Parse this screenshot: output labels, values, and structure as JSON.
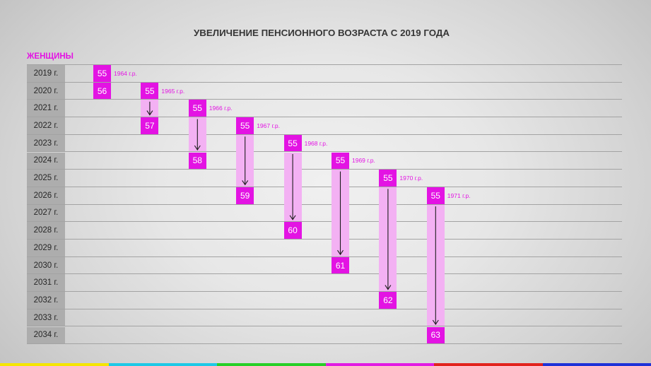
{
  "colors": {
    "accent": "#e313e3",
    "range_fill": "#f3b1f3",
    "row_label_fill": "#adadad",
    "row_line": "#a3a3a3",
    "title_text": "#363636",
    "row_label_text": "#262626",
    "arrow": "#1c1c1c",
    "box_text": "#ffffff",
    "brand_stripe": [
      "#f5e500",
      "#1ec8e6",
      "#27cf27",
      "#e21be2",
      "#e2231d",
      "#1d32d8"
    ]
  },
  "chart_data": {
    "type": "bar",
    "title": "УВЕЛИЧЕНИЕ ПЕНСИОННОГО ВОЗРАСТА С 2019 ГОДА",
    "subtitle": "ЖЕНЩИНЫ",
    "categories": [
      "2019 г.",
      "2020 г.",
      "2021 г.",
      "2022 г.",
      "2023 г.",
      "2024 г.",
      "2025 г.",
      "2026 г.",
      "2027 г.",
      "2028 г.",
      "2029 г.",
      "2030 г.",
      "2031 г.",
      "2032 г.",
      "2033 г.",
      "2034 г."
    ],
    "series": [
      {
        "name": "1964 г.р.",
        "from": {
          "year": 2019,
          "age": 55
        },
        "to": {
          "year": 2020,
          "age": 56
        }
      },
      {
        "name": "1965 г.р.",
        "from": {
          "year": 2020,
          "age": 55
        },
        "to": {
          "year": 2022,
          "age": 57
        }
      },
      {
        "name": "1966 г.р.",
        "from": {
          "year": 2021,
          "age": 55
        },
        "to": {
          "year": 2024,
          "age": 58
        }
      },
      {
        "name": "1967 г.р.",
        "from": {
          "year": 2022,
          "age": 55
        },
        "to": {
          "year": 2026,
          "age": 59
        }
      },
      {
        "name": "1968 г.р.",
        "from": {
          "year": 2023,
          "age": 55
        },
        "to": {
          "year": 2028,
          "age": 60
        }
      },
      {
        "name": "1969 г.р.",
        "from": {
          "year": 2024,
          "age": 55
        },
        "to": {
          "year": 2030,
          "age": 61
        }
      },
      {
        "name": "1970 г.р.",
        "from": {
          "year": 2025,
          "age": 55
        },
        "to": {
          "year": 2032,
          "age": 62
        }
      },
      {
        "name": "1971 г.р.",
        "from": {
          "year": 2026,
          "age": 55
        },
        "to": {
          "year": 2034,
          "age": 63
        }
      }
    ]
  }
}
